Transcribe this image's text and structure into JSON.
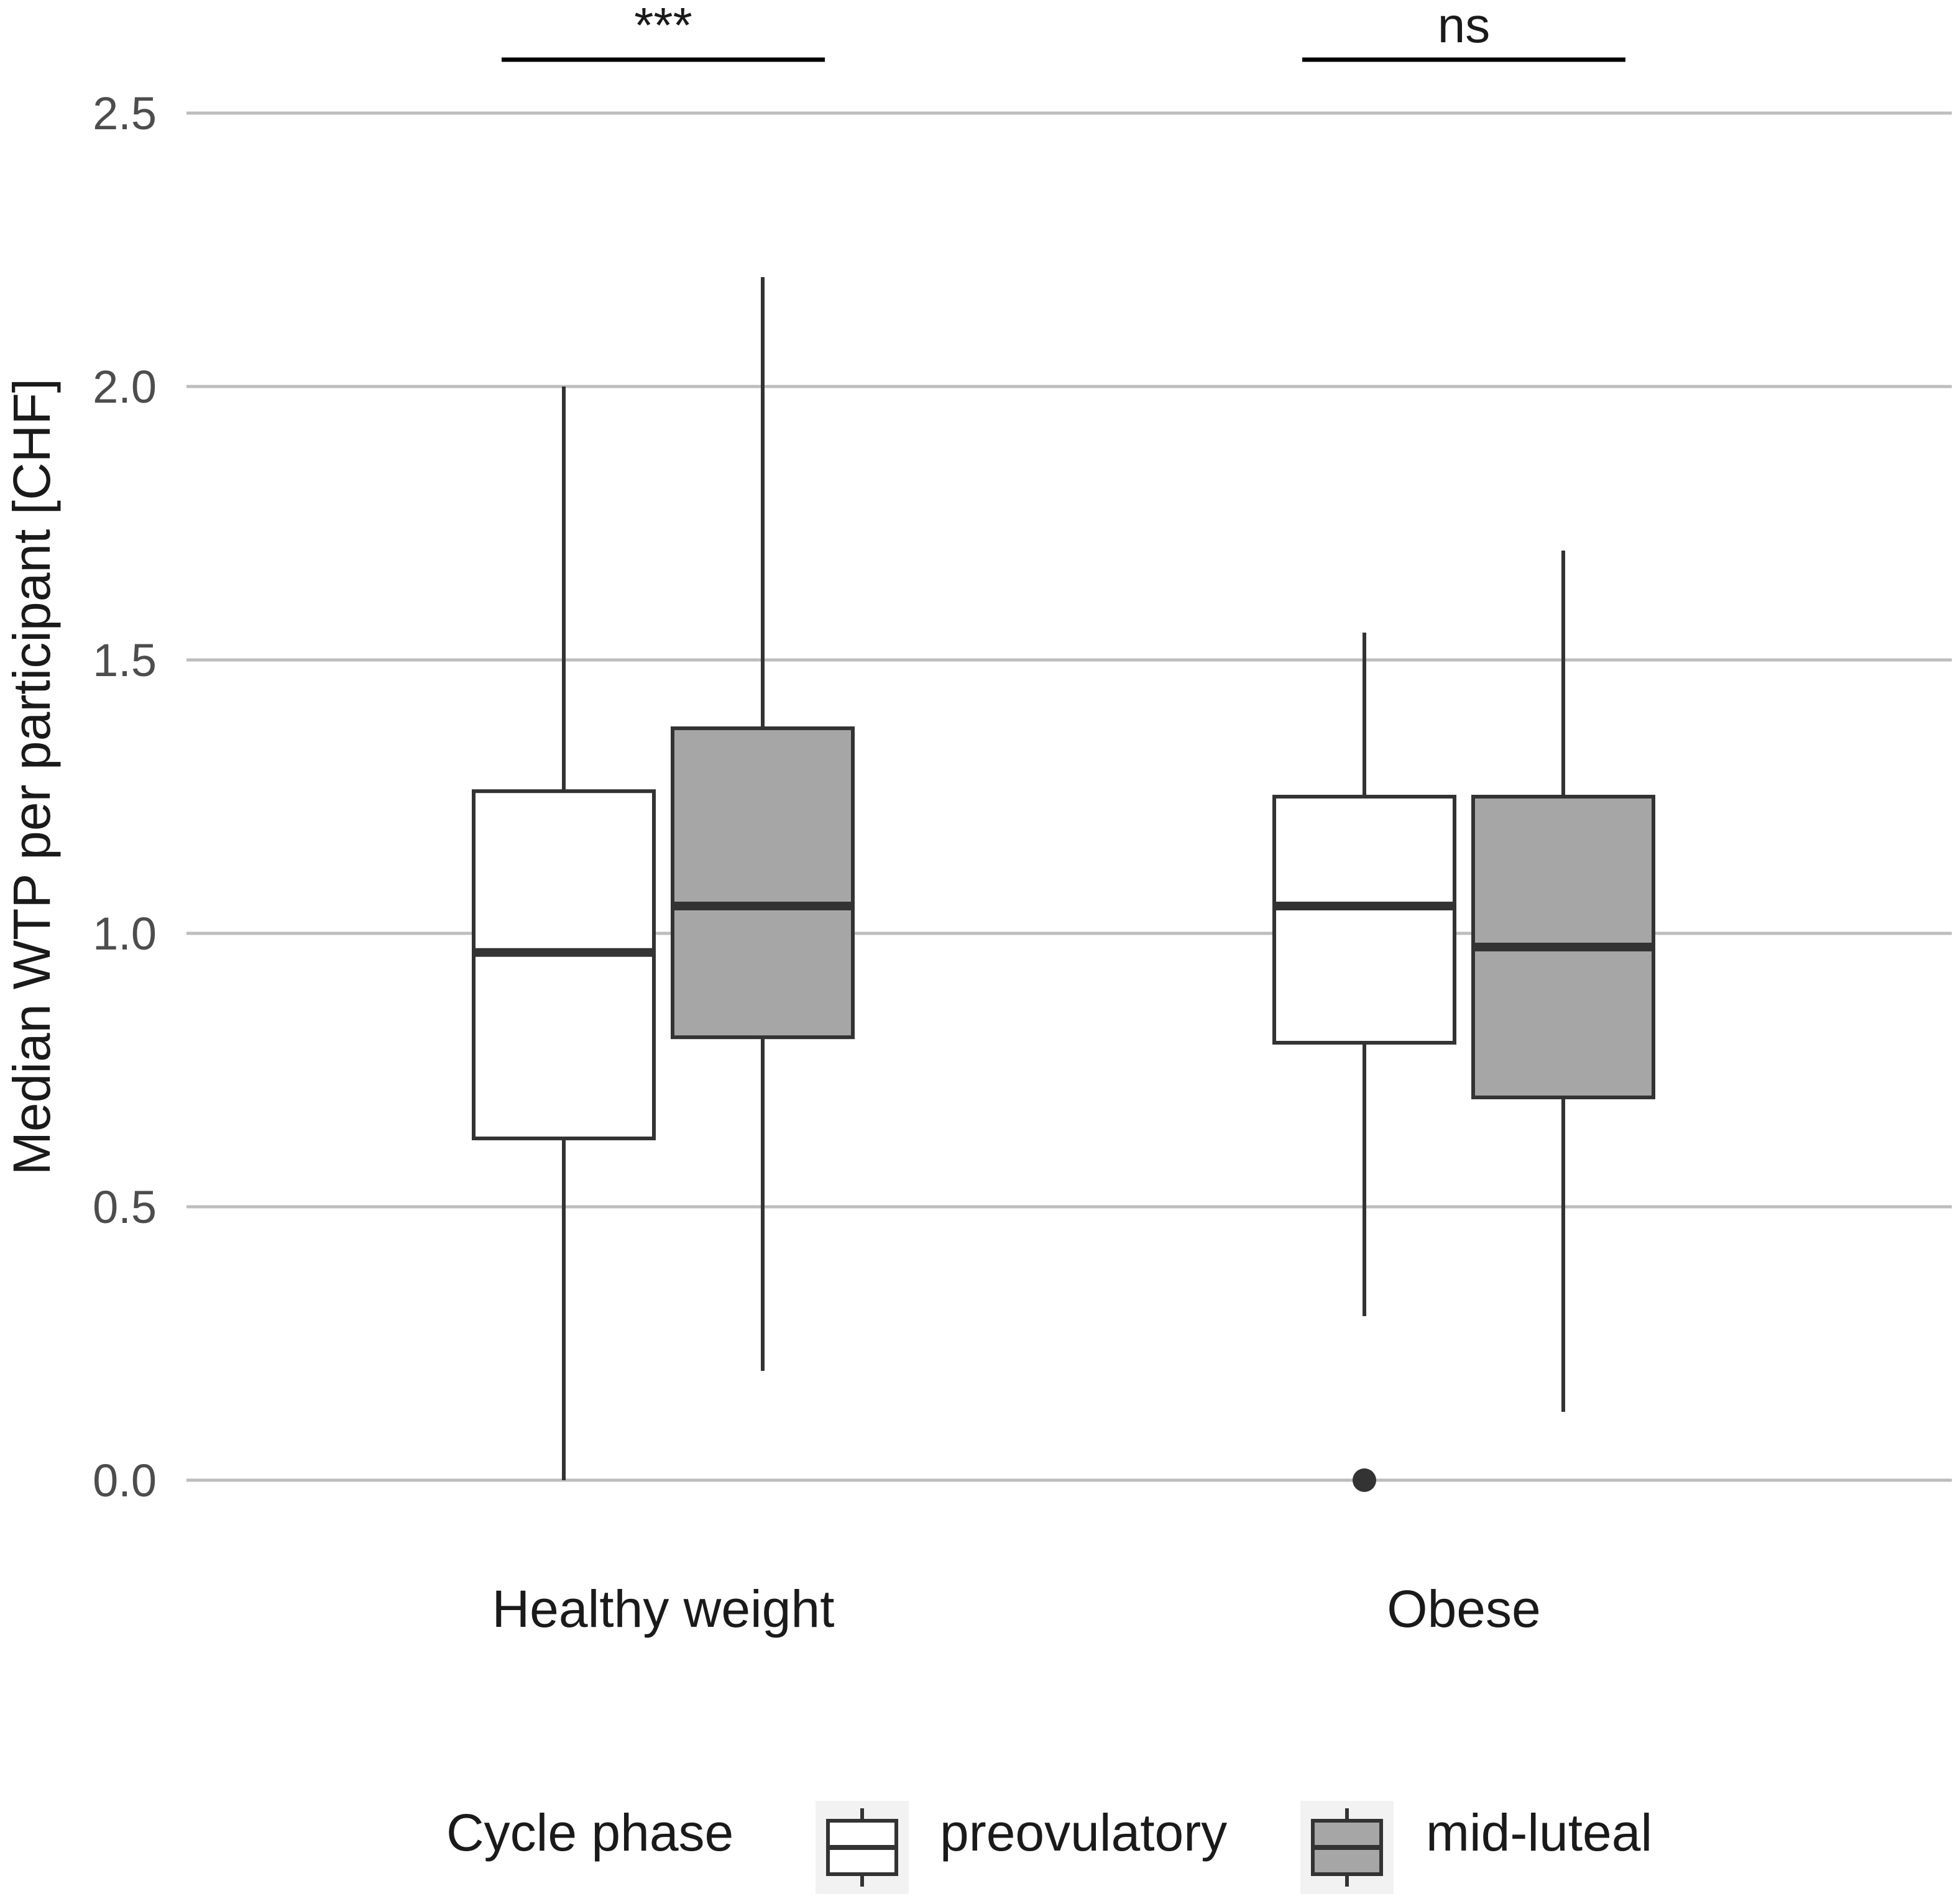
{
  "chart_data": {
    "type": "boxplot",
    "title": "",
    "xlabel": "",
    "ylabel": "Median WTP per participant [CHF]",
    "ylim": [
      -0.12,
      2.7
    ],
    "yticks": [
      0.0,
      0.5,
      1.0,
      1.5,
      2.0,
      2.5
    ],
    "ytick_labels": [
      "0.0",
      "0.5",
      "1.0",
      "1.5",
      "2.0",
      "2.5"
    ],
    "grid": true,
    "categories": [
      "Healthy weight",
      "Obese"
    ],
    "series": [
      {
        "name": "preovulatory",
        "color": "#ffffff",
        "boxes": [
          {
            "category": "Healthy weight",
            "whisker_low": 0.0,
            "q1": 0.625,
            "median": 0.965,
            "q3": 1.26,
            "whisker_high": 2.0,
            "outliers": []
          },
          {
            "category": "Obese",
            "whisker_low": 0.3,
            "q1": 0.8,
            "median": 1.05,
            "q3": 1.25,
            "whisker_high": 1.55,
            "outliers": [
              0.0
            ]
          }
        ]
      },
      {
        "name": "mid-luteal",
        "color": "#a6a6a6",
        "boxes": [
          {
            "category": "Healthy weight",
            "whisker_low": 0.2,
            "q1": 0.81,
            "median": 1.05,
            "q3": 1.375,
            "whisker_high": 2.2,
            "outliers": []
          },
          {
            "category": "Obese",
            "whisker_low": 0.125,
            "q1": 0.7,
            "median": 0.975,
            "q3": 1.25,
            "whisker_high": 1.7,
            "outliers": []
          }
        ]
      }
    ],
    "annotations": [
      {
        "category": "Healthy weight",
        "label": "***"
      },
      {
        "category": "Obese",
        "label": "ns"
      }
    ],
    "legend": {
      "title": "Cycle phase",
      "position": "bottom",
      "items": [
        "preovulatory",
        "mid-luteal"
      ]
    }
  }
}
